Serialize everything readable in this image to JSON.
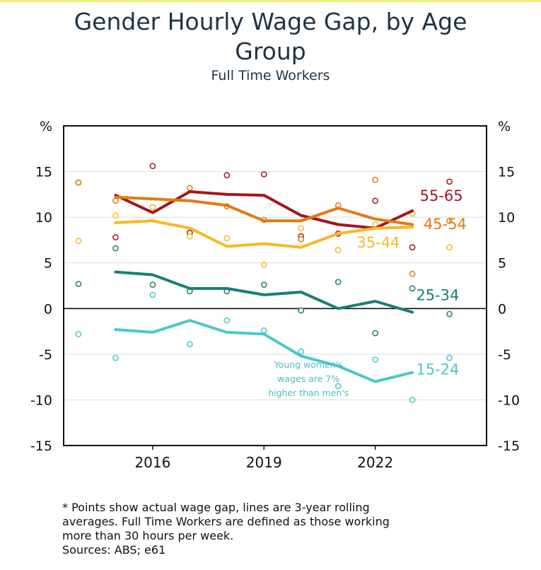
{
  "header": {
    "title": "Gender Hourly Wage Gap, by Age Group",
    "subtitle": "Full Time Workers"
  },
  "footnote": {
    "line1": "* Points show actual wage gap, lines are 3-year rolling",
    "line2": "averages. Full Time Workers are defined as those working",
    "line3": "more than 30 hours per week.",
    "sources": "Sources: ABS; e61"
  },
  "chart_data": {
    "type": "line",
    "title": "Gender Hourly Wage Gap, by Age Group",
    "subtitle": "Full Time Workers",
    "ylabel_left": "%",
    "ylabel_right": "%",
    "xlim": [
      2013.6,
      2025
    ],
    "ylim": [
      -15,
      20
    ],
    "yticks": [
      -15,
      -10,
      -5,
      0,
      5,
      10,
      15
    ],
    "xticks": [
      2016,
      2019,
      2022
    ],
    "grid": true,
    "annotation": {
      "lines": [
        "Young women's",
        "wages are 7%",
        "higher than men's"
      ],
      "x": 2020.2,
      "y": -6.5,
      "color": "#4dbcc4"
    },
    "series": [
      {
        "name": "55-65",
        "color": "#a4161a",
        "points_x": [
          2014,
          2015,
          2016,
          2017,
          2018,
          2019,
          2020,
          2021,
          2022,
          2023,
          2024
        ],
        "points_y": [
          13.8,
          7.8,
          15.6,
          8.3,
          14.6,
          14.7,
          7.9,
          8.2,
          11.8,
          6.7,
          13.9
        ],
        "line_x": [
          2015,
          2016,
          2017,
          2018,
          2019,
          2020,
          2021,
          2022,
          2023
        ],
        "line_y": [
          12.4,
          10.5,
          12.8,
          12.5,
          12.4,
          10.2,
          9.2,
          8.8,
          10.7
        ],
        "label_x": 2023.2,
        "label_y": 11.8
      },
      {
        "name": "45-54",
        "color": "#e07b12",
        "points_x": [
          2014,
          2015,
          2016,
          2017,
          2018,
          2019,
          2020,
          2021,
          2022,
          2023,
          2024
        ],
        "points_y": [
          13.8,
          11.8,
          11.1,
          13.2,
          11.2,
          9.7,
          7.6,
          11.3,
          14.1,
          3.8,
          9.6
        ],
        "line_x": [
          2015,
          2016,
          2017,
          2018,
          2019,
          2020,
          2021,
          2022,
          2023
        ],
        "line_y": [
          12.2,
          12.0,
          11.8,
          11.3,
          9.6,
          9.6,
          11.0,
          9.8,
          9.2
        ],
        "label_x": 2023.3,
        "label_y": 8.7
      },
      {
        "name": "35-44",
        "color": "#f7b825",
        "points_x": [
          2014,
          2015,
          2016,
          2017,
          2018,
          2019,
          2020,
          2021,
          2022,
          2023,
          2024
        ],
        "points_y": [
          7.4,
          10.2,
          11.1,
          7.9,
          7.7,
          4.8,
          8.8,
          6.4,
          9.2,
          10.4,
          6.7
        ],
        "line_x": [
          2015,
          2016,
          2017,
          2018,
          2019,
          2020,
          2021,
          2022,
          2023
        ],
        "line_y": [
          9.4,
          9.6,
          8.8,
          6.8,
          7.1,
          6.7,
          8.2,
          8.8,
          8.9
        ],
        "label_x": 2021.5,
        "label_y": 6.7
      },
      {
        "name": "25-34",
        "color": "#1a7f77",
        "points_x": [
          2014,
          2015,
          2016,
          2017,
          2018,
          2019,
          2020,
          2021,
          2022,
          2023,
          2024
        ],
        "points_y": [
          2.7,
          6.6,
          2.6,
          1.9,
          1.9,
          2.6,
          -0.2,
          2.9,
          -2.7,
          2.2,
          -0.6
        ],
        "line_x": [
          2015,
          2016,
          2017,
          2018,
          2019,
          2020,
          2021,
          2022,
          2023
        ],
        "line_y": [
          4.0,
          3.7,
          2.2,
          2.2,
          1.5,
          1.8,
          0.0,
          0.8,
          -0.4
        ],
        "label_x": 2023.1,
        "label_y": 0.9
      },
      {
        "name": "15-24",
        "color": "#4dc6cb",
        "points_x": [
          2014,
          2015,
          2016,
          2017,
          2018,
          2019,
          2020,
          2021,
          2022,
          2023,
          2024
        ],
        "points_y": [
          -2.8,
          -5.4,
          1.5,
          -3.9,
          -1.3,
          -2.4,
          -4.7,
          -8.5,
          -5.6,
          -10.0,
          -5.4
        ],
        "line_x": [
          2015,
          2016,
          2017,
          2018,
          2019,
          2020,
          2021,
          2022,
          2023
        ],
        "line_y": [
          -2.3,
          -2.6,
          -1.3,
          -2.6,
          -2.8,
          -5.2,
          -6.3,
          -8.0,
          -7.0
        ],
        "label_x": 2023.1,
        "label_y": -7.2
      }
    ]
  }
}
